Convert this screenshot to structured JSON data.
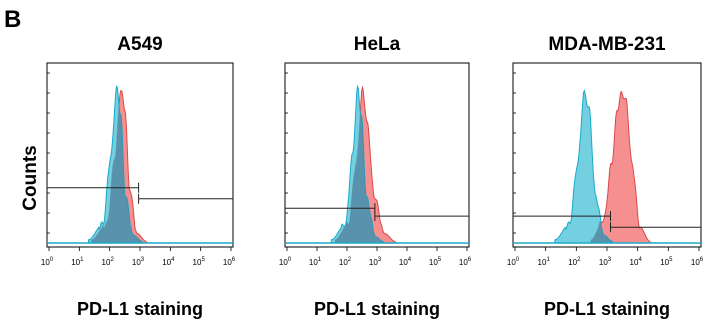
{
  "panel_label": "B",
  "y_label": "Counts",
  "colors": {
    "control_fill": "#5bc8dc",
    "control_stroke": "#1aa9c9",
    "stained_fill": "#f47c7c",
    "stained_stroke": "#d94a4a",
    "overlap": "#4e7f9c",
    "gate": "#222222",
    "frame": "#000000"
  },
  "chart_data": [
    {
      "type": "area",
      "title": "A549",
      "xlabel": "PD-L1 staining",
      "ylabel": "Counts",
      "x_scale": "log",
      "xlim": [
        1,
        1000000
      ],
      "x_ticks": [
        "10^0",
        "10^1",
        "10^2",
        "10^3",
        "10^4",
        "10^5",
        "10^6"
      ],
      "series": [
        {
          "role": "control",
          "peak": 180,
          "width": 0.24,
          "points": [
            [
              20,
              0.02
            ],
            [
              60,
              0.12
            ],
            [
              110,
              0.55
            ],
            [
              170,
              0.98
            ],
            [
              230,
              0.82
            ],
            [
              330,
              0.3
            ],
            [
              600,
              0.05
            ],
            [
              1200,
              0.01
            ]
          ]
        },
        {
          "role": "stained",
          "peak": 240,
          "width": 0.24,
          "points": [
            [
              25,
              0.02
            ],
            [
              80,
              0.12
            ],
            [
              150,
              0.55
            ],
            [
              230,
              0.97
            ],
            [
              320,
              0.85
            ],
            [
              450,
              0.35
            ],
            [
              800,
              0.06
            ],
            [
              1600,
              0.01
            ]
          ]
        }
      ],
      "gates": [
        {
          "from": 1,
          "to": 900,
          "level": 0.35
        },
        {
          "from": 900,
          "to": 1000000,
          "level": 0.28
        }
      ]
    },
    {
      "type": "area",
      "title": "HeLa",
      "xlabel": "PD-L1 staining",
      "ylabel": "Counts",
      "x_scale": "log",
      "xlim": [
        1,
        1000000
      ],
      "x_ticks": [
        "10^0",
        "10^1",
        "10^2",
        "10^3",
        "10^4",
        "10^5",
        "10^6"
      ],
      "series": [
        {
          "role": "control",
          "peak": 230,
          "width": 0.23,
          "points": [
            [
              30,
              0.02
            ],
            [
              90,
              0.12
            ],
            [
              150,
              0.55
            ],
            [
              230,
              0.98
            ],
            [
              300,
              0.8
            ],
            [
              450,
              0.28
            ],
            [
              900,
              0.04
            ],
            [
              1600,
              0.01
            ]
          ]
        },
        {
          "role": "stained",
          "peak": 330,
          "width": 0.27,
          "points": [
            [
              40,
              0.02
            ],
            [
              110,
              0.12
            ],
            [
              200,
              0.5
            ],
            [
              330,
              0.97
            ],
            [
              480,
              0.75
            ],
            [
              800,
              0.3
            ],
            [
              1800,
              0.06
            ],
            [
              4000,
              0.01
            ]
          ]
        }
      ],
      "gates": [
        {
          "from": 1,
          "to": 850,
          "level": 0.22
        },
        {
          "from": 850,
          "to": 1000000,
          "level": 0.17
        }
      ]
    },
    {
      "type": "area",
      "title": "MDA-MB-231",
      "xlabel": "PD-L1 staining",
      "ylabel": "Counts",
      "x_scale": "log",
      "xlim": [
        1,
        1000000
      ],
      "x_ticks": [
        "10^0",
        "10^1",
        "10^2",
        "10^3",
        "10^4",
        "10^5",
        "10^6"
      ],
      "series": [
        {
          "role": "control",
          "peak": 200,
          "width": 0.25,
          "points": [
            [
              20,
              0.02
            ],
            [
              60,
              0.12
            ],
            [
              110,
              0.5
            ],
            [
              180,
              0.95
            ],
            [
              260,
              0.85
            ],
            [
              420,
              0.3
            ],
            [
              800,
              0.05
            ],
            [
              1500,
              0.01
            ]
          ]
        },
        {
          "role": "stained",
          "peak": 2800,
          "width": 0.3,
          "points": [
            [
              300,
              0.02
            ],
            [
              800,
              0.15
            ],
            [
              1400,
              0.5
            ],
            [
              2200,
              0.85
            ],
            [
              3000,
              0.95
            ],
            [
              4200,
              0.9
            ],
            [
              6500,
              0.5
            ],
            [
              12000,
              0.1
            ],
            [
              25000,
              0.01
            ]
          ]
        }
      ],
      "gates": [
        {
          "from": 1,
          "to": 1300,
          "level": 0.17
        },
        {
          "from": 1300,
          "to": 1000000,
          "level": 0.1
        }
      ]
    }
  ]
}
